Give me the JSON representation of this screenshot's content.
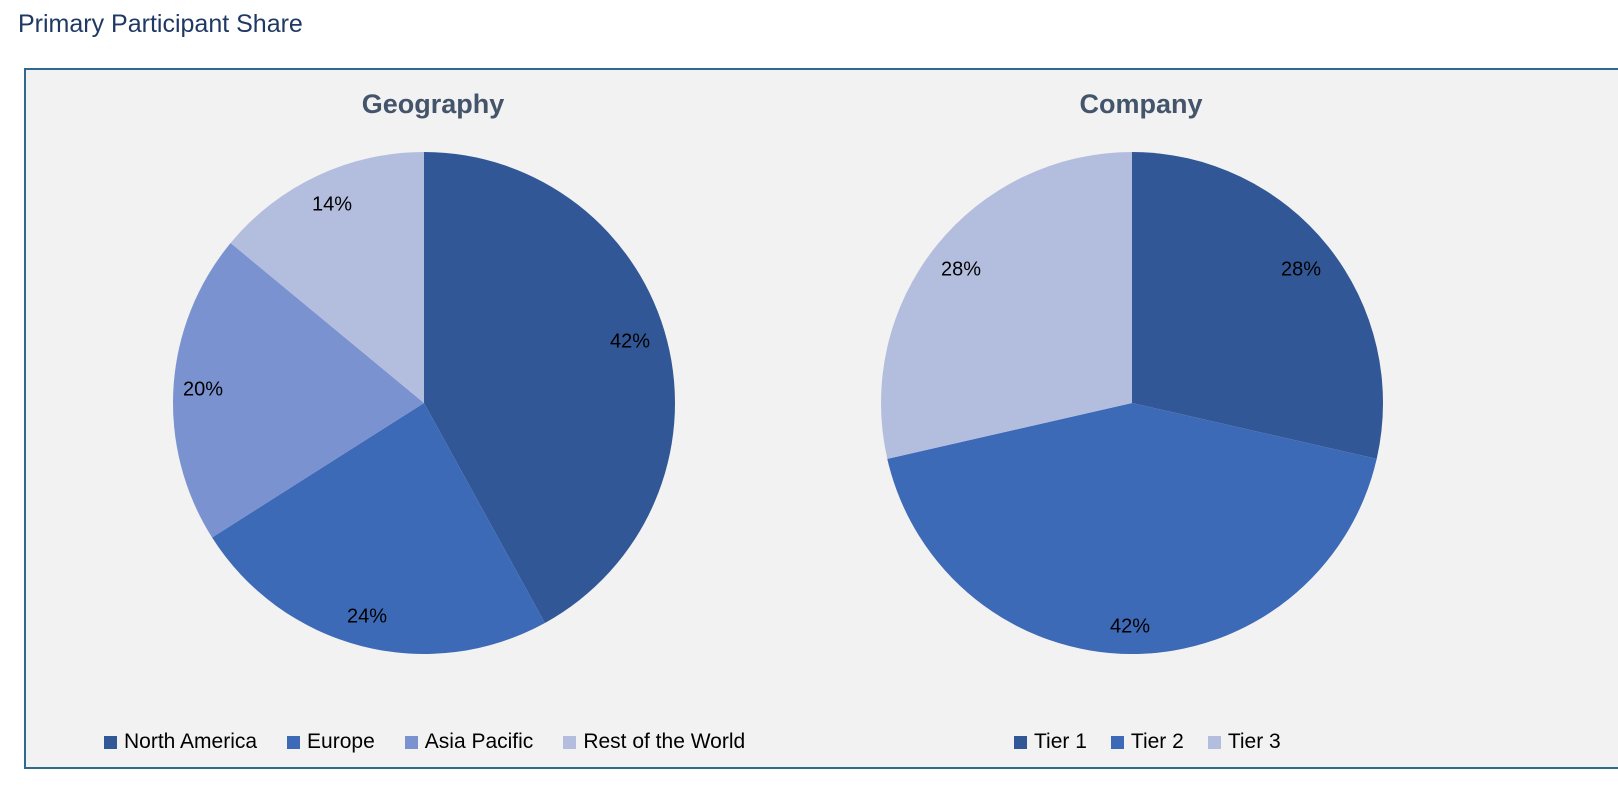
{
  "header": {
    "title": "Primary Participant Share"
  },
  "chart_data": [
    {
      "type": "pie",
      "title": "Geography",
      "categories": [
        "North America",
        "Europe",
        "Asia Pacific",
        "Rest of the World"
      ],
      "values": [
        42,
        24,
        20,
        14
      ],
      "value_labels": [
        "42%",
        "24%",
        "20%",
        "14%"
      ],
      "colors": [
        "#325797",
        "#3d6ab7",
        "#7a92d0",
        "#b3bedf"
      ],
      "legend": "bottom"
    },
    {
      "type": "pie",
      "title": "Company",
      "categories": [
        "Tier 1",
        "Tier 2",
        "Tier 3"
      ],
      "values": [
        28,
        42,
        28
      ],
      "value_labels": [
        "28%",
        "42%",
        "28%"
      ],
      "colors": [
        "#325797",
        "#3d6ab7",
        "#b3bedf"
      ],
      "legend": "bottom"
    }
  ]
}
